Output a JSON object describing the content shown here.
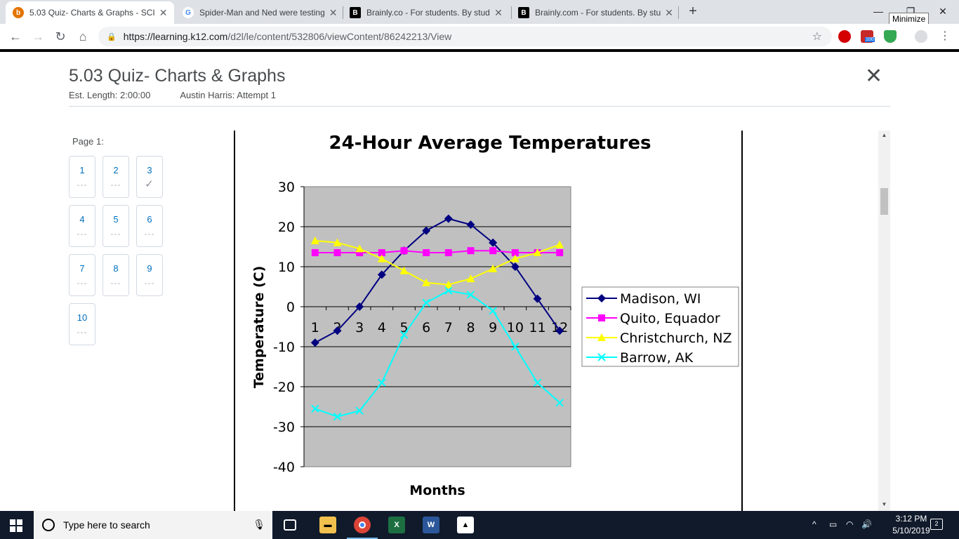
{
  "browser": {
    "tabs": [
      {
        "title": "5.03 Quiz- Charts & Graphs - SCI",
        "favicon": "b",
        "favicon_color": "#e37400",
        "active": true
      },
      {
        "title": "Spider-Man and Ned were testing",
        "favicon": "G",
        "favicon_color": "#4285f4",
        "active": false
      },
      {
        "title": "Brainly.co - For students. By stud",
        "favicon": "B",
        "favicon_color": "#000000",
        "active": false
      },
      {
        "title": "Brainly.com - For students. By stu",
        "favicon": "B",
        "favicon_color": "#000000",
        "active": false
      }
    ],
    "tooltip": "Minimize",
    "url_host": "https://learning.k12.com",
    "url_path": "/d2l/le/content/532806/viewContent/86242213/View",
    "extension_badge": "100"
  },
  "quiz": {
    "title": "5.03 Quiz- Charts & Graphs",
    "est_length": "Est. Length: 2:00:00",
    "attempt": "Austin Harris: Attempt 1",
    "page_label": "Page 1:",
    "questions": [
      {
        "num": "1",
        "answered": false
      },
      {
        "num": "2",
        "answered": false
      },
      {
        "num": "3",
        "answered": true
      },
      {
        "num": "4",
        "answered": false
      },
      {
        "num": "5",
        "answered": false
      },
      {
        "num": "6",
        "answered": false
      },
      {
        "num": "7",
        "answered": false
      },
      {
        "num": "8",
        "answered": false
      },
      {
        "num": "9",
        "answered": false
      },
      {
        "num": "10",
        "answered": false
      }
    ],
    "unanswered_mark": "---",
    "answered_mark": "✓"
  },
  "chart_data": {
    "type": "line",
    "title": "24-Hour Average Temperatures",
    "xlabel": "Months",
    "ylabel": "Temperature (C)",
    "x": [
      1,
      2,
      3,
      4,
      5,
      6,
      7,
      8,
      9,
      10,
      11,
      12
    ],
    "ylim": [
      -40,
      30
    ],
    "yticks": [
      30,
      20,
      10,
      0,
      -10,
      -20,
      -30,
      -40
    ],
    "grid": true,
    "legend": "right",
    "plot_background": "#c0c0c0",
    "series": [
      {
        "name": "Madison, WI",
        "color": "#000080",
        "marker": "diamond",
        "values": [
          -9,
          -6,
          0,
          8,
          14,
          19,
          22,
          20.5,
          16,
          10,
          2,
          -6
        ]
      },
      {
        "name": "Quito, Equador",
        "color": "#ff00ff",
        "marker": "square",
        "values": [
          13.5,
          13.5,
          13.5,
          13.5,
          14,
          13.5,
          13.5,
          14,
          14,
          13.5,
          13.5,
          13.5
        ]
      },
      {
        "name": "Christchurch, NZ",
        "color": "#ffff00",
        "marker": "triangle",
        "values": [
          16.5,
          16,
          14.5,
          12,
          9,
          6,
          5.5,
          7,
          9.5,
          12,
          13.5,
          15.5
        ]
      },
      {
        "name": "Barrow, AK",
        "color": "#00ffff",
        "marker": "x",
        "values": [
          -25.5,
          -27.5,
          -26,
          -19,
          -7,
          1,
          4,
          3,
          -1,
          -10,
          -19,
          -24
        ]
      }
    ]
  },
  "taskbar": {
    "search_placeholder": "Type here to search",
    "time": "3:12 PM",
    "date": "5/10/2019",
    "notification_count": "2"
  }
}
